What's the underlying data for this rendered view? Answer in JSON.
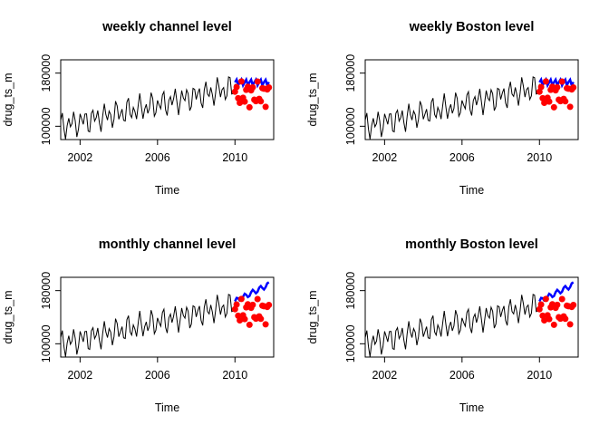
{
  "chart_data": [
    {
      "type": "line",
      "title": "weekly channel level",
      "xlabel": "Time",
      "ylabel": "drug_ts_m",
      "xticks": [
        "2002",
        "2006",
        "2010"
      ],
      "yticks": [
        "100000",
        "180000"
      ],
      "forecast_shape": "weekly"
    },
    {
      "type": "line",
      "title": "weekly Boston level",
      "xlabel": "Time",
      "ylabel": "drug_ts_m",
      "xticks": [
        "2002",
        "2006",
        "2010"
      ],
      "yticks": [
        "100000",
        "180000"
      ],
      "forecast_shape": "weekly"
    },
    {
      "type": "line",
      "title": "monthly channel level",
      "xlabel": "Time",
      "ylabel": "drug_ts_m",
      "xticks": [
        "2002",
        "2006",
        "2010"
      ],
      "yticks": [
        "100000",
        "180000"
      ],
      "forecast_shape": "monthly"
    },
    {
      "type": "line",
      "title": "monthly Boston level",
      "xlabel": "Time",
      "ylabel": "drug_ts_m",
      "xticks": [
        "2002",
        "2006",
        "2010"
      ],
      "yticks": [
        "100000",
        "180000"
      ],
      "forecast_shape": "monthly"
    }
  ],
  "series_style": {
    "history_color": "#000000",
    "actual_points_color": "#ff0000",
    "forecast_color": "#0000ff"
  }
}
